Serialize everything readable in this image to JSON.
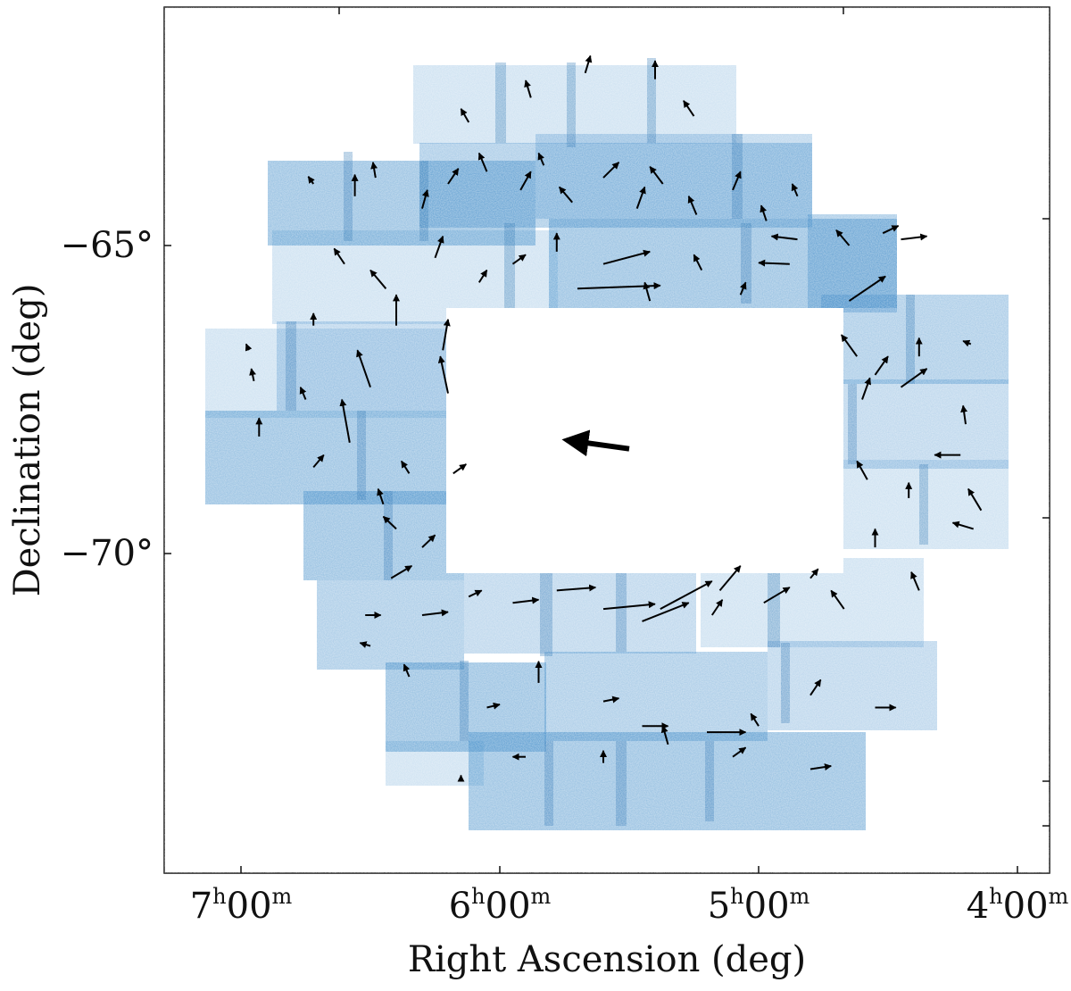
{
  "chart_data": {
    "type": "scatter",
    "description_of_marks": "density map of star counts (blue) with proper-motion vectors (black arrows)",
    "xlabel": "Right Ascension (deg)",
    "ylabel": "Declination (deg)",
    "x_ticks": [
      {
        "h": "7",
        "m": "00",
        "value_hours": 7.0
      },
      {
        "h": "6",
        "m": "00",
        "value_hours": 6.0
      },
      {
        "h": "5",
        "m": "00",
        "value_hours": 5.0
      },
      {
        "h": "4",
        "m": "00",
        "value_hours": 4.0
      }
    ],
    "y_ticks": [
      {
        "label": "−65°",
        "value_deg": -65
      },
      {
        "label": "−70°",
        "value_deg": -70
      }
    ],
    "density_color": "#2a7fc2",
    "arrow_color": "#000000",
    "center_arrow": {
      "ra_h": 5.5,
      "dec": -68.3,
      "dra_h": 0.24,
      "ddec": 0.14
    },
    "vectors": [
      {
        "ra_h": 6.72,
        "dec": -64.0,
        "dra_h": 0.02,
        "ddec": 0.12
      },
      {
        "ra_h": 6.56,
        "dec": -64.2,
        "dra_h": 0.0,
        "ddec": 0.35
      },
      {
        "ra_h": 6.48,
        "dec": -63.9,
        "dra_h": 0.01,
        "ddec": 0.25
      },
      {
        "ra_h": 6.3,
        "dec": -64.4,
        "dra_h": -0.02,
        "ddec": 0.3
      },
      {
        "ra_h": 6.2,
        "dec": -64.0,
        "dra_h": -0.04,
        "ddec": 0.25
      },
      {
        "ra_h": 6.05,
        "dec": -63.8,
        "dra_h": 0.03,
        "ddec": 0.3
      },
      {
        "ra_h": 5.92,
        "dec": -64.1,
        "dra_h": -0.04,
        "ddec": 0.3
      },
      {
        "ra_h": 5.83,
        "dec": -63.7,
        "dra_h": 0.02,
        "ddec": 0.2
      },
      {
        "ra_h": 5.72,
        "dec": -64.3,
        "dra_h": 0.05,
        "ddec": 0.25
      },
      {
        "ra_h": 5.6,
        "dec": -63.9,
        "dra_h": -0.06,
        "ddec": 0.25
      },
      {
        "ra_h": 5.47,
        "dec": -64.4,
        "dra_h": -0.03,
        "ddec": 0.35
      },
      {
        "ra_h": 5.37,
        "dec": -64.0,
        "dra_h": 0.05,
        "ddec": 0.28
      },
      {
        "ra_h": 5.24,
        "dec": -64.5,
        "dra_h": 0.03,
        "ddec": 0.3
      },
      {
        "ra_h": 5.1,
        "dec": -64.1,
        "dra_h": -0.03,
        "ddec": 0.3
      },
      {
        "ra_h": 4.97,
        "dec": -64.6,
        "dra_h": 0.02,
        "ddec": 0.25
      },
      {
        "ra_h": 4.85,
        "dec": -64.2,
        "dra_h": 0.02,
        "ddec": 0.2
      },
      {
        "ra_h": 5.88,
        "dec": -62.6,
        "dra_h": 0.02,
        "ddec": 0.28
      },
      {
        "ra_h": 5.67,
        "dec": -62.2,
        "dra_h": -0.02,
        "ddec": 0.28
      },
      {
        "ra_h": 5.4,
        "dec": -62.3,
        "dra_h": 0.0,
        "ddec": 0.3
      },
      {
        "ra_h": 5.25,
        "dec": -62.9,
        "dra_h": 0.04,
        "ddec": 0.25
      },
      {
        "ra_h": 6.12,
        "dec": -63.0,
        "dra_h": 0.03,
        "ddec": 0.22
      },
      {
        "ra_h": 6.6,
        "dec": -65.3,
        "dra_h": 0.04,
        "ddec": 0.25
      },
      {
        "ra_h": 6.44,
        "dec": -65.7,
        "dra_h": 0.06,
        "ddec": 0.3
      },
      {
        "ra_h": 6.25,
        "dec": -65.2,
        "dra_h": -0.03,
        "ddec": 0.35
      },
      {
        "ra_h": 6.08,
        "dec": -65.6,
        "dra_h": -0.03,
        "ddec": 0.2
      },
      {
        "ra_h": 5.95,
        "dec": -65.3,
        "dra_h": -0.05,
        "ddec": 0.15
      },
      {
        "ra_h": 5.7,
        "dec": -65.7,
        "dra_h": -0.32,
        "ddec": 0.05
      },
      {
        "ra_h": 5.6,
        "dec": -65.3,
        "dra_h": -0.18,
        "ddec": 0.2
      },
      {
        "ra_h": 5.78,
        "dec": -65.1,
        "dra_h": 0.0,
        "ddec": 0.3
      },
      {
        "ra_h": 5.42,
        "dec": -65.9,
        "dra_h": 0.02,
        "ddec": 0.3
      },
      {
        "ra_h": 5.22,
        "dec": -65.4,
        "dra_h": 0.03,
        "ddec": 0.25
      },
      {
        "ra_h": 5.07,
        "dec": -65.8,
        "dra_h": -0.02,
        "ddec": 0.2
      },
      {
        "ra_h": 4.88,
        "dec": -65.3,
        "dra_h": 0.12,
        "ddec": 0.02
      },
      {
        "ra_h": 4.85,
        "dec": -64.9,
        "dra_h": 0.1,
        "ddec": 0.05
      },
      {
        "ra_h": 4.65,
        "dec": -65.0,
        "dra_h": 0.05,
        "ddec": 0.25
      },
      {
        "ra_h": 4.52,
        "dec": -64.8,
        "dra_h": -0.06,
        "ddec": 0.12
      },
      {
        "ra_h": 4.45,
        "dec": -64.9,
        "dra_h": -0.1,
        "ddec": 0.05
      },
      {
        "ra_h": 4.65,
        "dec": -65.9,
        "dra_h": -0.14,
        "ddec": 0.4
      },
      {
        "ra_h": 4.62,
        "dec": -66.8,
        "dra_h": 0.06,
        "ddec": 0.35
      },
      {
        "ra_h": 4.55,
        "dec": -67.1,
        "dra_h": -0.05,
        "ddec": 0.3
      },
      {
        "ra_h": 4.6,
        "dec": -67.5,
        "dra_h": -0.03,
        "ddec": 0.35
      },
      {
        "ra_h": 4.45,
        "dec": -67.3,
        "dra_h": -0.1,
        "ddec": 0.3
      },
      {
        "ra_h": 4.38,
        "dec": -66.8,
        "dra_h": 0.0,
        "ddec": 0.3
      },
      {
        "ra_h": 4.18,
        "dec": -66.6,
        "dra_h": 0.03,
        "ddec": 0.05
      },
      {
        "ra_h": 4.2,
        "dec": -67.9,
        "dra_h": 0.01,
        "ddec": 0.3
      },
      {
        "ra_h": 4.22,
        "dec": -68.4,
        "dra_h": 0.1,
        "ddec": 0.0
      },
      {
        "ra_h": 4.14,
        "dec": -69.3,
        "dra_h": 0.05,
        "ddec": 0.35
      },
      {
        "ra_h": 4.17,
        "dec": -69.6,
        "dra_h": 0.08,
        "ddec": 0.1
      },
      {
        "ra_h": 4.42,
        "dec": -69.1,
        "dra_h": 0.0,
        "ddec": 0.25
      },
      {
        "ra_h": 4.58,
        "dec": -68.8,
        "dra_h": 0.04,
        "ddec": 0.3
      },
      {
        "ra_h": 4.55,
        "dec": -69.9,
        "dra_h": 0.0,
        "ddec": 0.3
      },
      {
        "ra_h": 4.38,
        "dec": -70.6,
        "dra_h": 0.03,
        "ddec": 0.3
      },
      {
        "ra_h": 4.67,
        "dec": -70.9,
        "dra_h": 0.05,
        "ddec": 0.3
      },
      {
        "ra_h": 4.8,
        "dec": -70.4,
        "dra_h": -0.03,
        "ddec": 0.15
      },
      {
        "ra_h": 4.98,
        "dec": -70.8,
        "dra_h": -0.1,
        "ddec": 0.25
      },
      {
        "ra_h": 5.15,
        "dec": -70.6,
        "dra_h": -0.08,
        "ddec": 0.4
      },
      {
        "ra_h": 5.18,
        "dec": -71.0,
        "dra_h": -0.04,
        "ddec": 0.25
      },
      {
        "ra_h": 5.38,
        "dec": -70.9,
        "dra_h": -0.2,
        "ddec": 0.45
      },
      {
        "ra_h": 5.45,
        "dec": -71.1,
        "dra_h": -0.18,
        "ddec": 0.3
      },
      {
        "ra_h": 5.6,
        "dec": -70.9,
        "dra_h": -0.2,
        "ddec": 0.08
      },
      {
        "ra_h": 5.78,
        "dec": -70.6,
        "dra_h": -0.15,
        "ddec": 0.05
      },
      {
        "ra_h": 5.95,
        "dec": -70.8,
        "dra_h": -0.1,
        "ddec": 0.05
      },
      {
        "ra_h": 6.12,
        "dec": -70.7,
        "dra_h": -0.05,
        "ddec": 0.1
      },
      {
        "ra_h": 6.42,
        "dec": -70.4,
        "dra_h": -0.08,
        "ddec": 0.2
      },
      {
        "ra_h": 6.3,
        "dec": -71.0,
        "dra_h": -0.1,
        "ddec": 0.05
      },
      {
        "ra_h": 6.5,
        "dec": -71.5,
        "dra_h": 0.04,
        "ddec": 0.05
      },
      {
        "ra_h": 6.35,
        "dec": -72.0,
        "dra_h": 0.02,
        "ddec": 0.2
      },
      {
        "ra_h": 6.05,
        "dec": -72.5,
        "dra_h": -0.05,
        "ddec": 0.05
      },
      {
        "ra_h": 5.85,
        "dec": -72.1,
        "dra_h": 0.0,
        "ddec": 0.35
      },
      {
        "ra_h": 5.6,
        "dec": -72.4,
        "dra_h": -0.06,
        "ddec": 0.05
      },
      {
        "ra_h": 5.45,
        "dec": -72.8,
        "dra_h": -0.1,
        "ddec": 0.0
      },
      {
        "ra_h": 5.2,
        "dec": -72.9,
        "dra_h": -0.15,
        "ddec": 0.0
      },
      {
        "ra_h": 5.0,
        "dec": -72.8,
        "dra_h": 0.03,
        "ddec": 0.2
      },
      {
        "ra_h": 4.8,
        "dec": -72.3,
        "dra_h": -0.04,
        "ddec": 0.25
      },
      {
        "ra_h": 4.55,
        "dec": -72.5,
        "dra_h": -0.08,
        "ddec": 0.0
      },
      {
        "ra_h": 4.8,
        "dec": -73.5,
        "dra_h": -0.08,
        "ddec": 0.05
      },
      {
        "ra_h": 5.1,
        "dec": -73.3,
        "dra_h": -0.05,
        "ddec": 0.15
      },
      {
        "ra_h": 5.35,
        "dec": -73.1,
        "dra_h": 0.02,
        "ddec": 0.3
      },
      {
        "ra_h": 5.6,
        "dec": -73.4,
        "dra_h": 0.0,
        "ddec": 0.2
      },
      {
        "ra_h": 5.9,
        "dec": -73.3,
        "dra_h": 0.05,
        "ddec": 0.0
      },
      {
        "ra_h": 6.15,
        "dec": -73.7,
        "dra_h": 0.0,
        "ddec": 0.1
      },
      {
        "ra_h": 6.52,
        "dec": -71.0,
        "dra_h": -0.06,
        "ddec": 0.0
      },
      {
        "ra_h": 6.4,
        "dec": -69.6,
        "dra_h": 0.05,
        "ddec": 0.2
      },
      {
        "ra_h": 6.3,
        "dec": -69.9,
        "dra_h": -0.05,
        "ddec": 0.2
      },
      {
        "ra_h": 6.45,
        "dec": -69.2,
        "dra_h": 0.02,
        "ddec": 0.25
      },
      {
        "ra_h": 6.58,
        "dec": -68.2,
        "dra_h": 0.03,
        "ddec": 0.7
      },
      {
        "ra_h": 6.5,
        "dec": -67.3,
        "dra_h": 0.05,
        "ddec": 0.6
      },
      {
        "ra_h": 6.4,
        "dec": -66.3,
        "dra_h": 0.0,
        "ddec": 0.5
      },
      {
        "ra_h": 6.2,
        "dec": -67.4,
        "dra_h": 0.03,
        "ddec": 0.6
      },
      {
        "ra_h": 6.22,
        "dec": -66.7,
        "dra_h": -0.02,
        "ddec": 0.5
      },
      {
        "ra_h": 6.93,
        "dec": -68.1,
        "dra_h": 0.0,
        "ddec": 0.3
      },
      {
        "ra_h": 6.95,
        "dec": -67.2,
        "dra_h": 0.01,
        "ddec": 0.2
      },
      {
        "ra_h": 6.97,
        "dec": -66.7,
        "dra_h": 0.01,
        "ddec": 0.1
      },
      {
        "ra_h": 6.72,
        "dec": -66.3,
        "dra_h": 0.0,
        "ddec": 0.2
      },
      {
        "ra_h": 6.75,
        "dec": -67.5,
        "dra_h": 0.02,
        "ddec": 0.2
      },
      {
        "ra_h": 6.72,
        "dec": -68.6,
        "dra_h": -0.04,
        "ddec": 0.2
      },
      {
        "ra_h": 6.35,
        "dec": -68.7,
        "dra_h": 0.03,
        "ddec": 0.2
      },
      {
        "ra_h": 6.18,
        "dec": -68.7,
        "dra_h": -0.05,
        "ddec": 0.15
      }
    ]
  }
}
